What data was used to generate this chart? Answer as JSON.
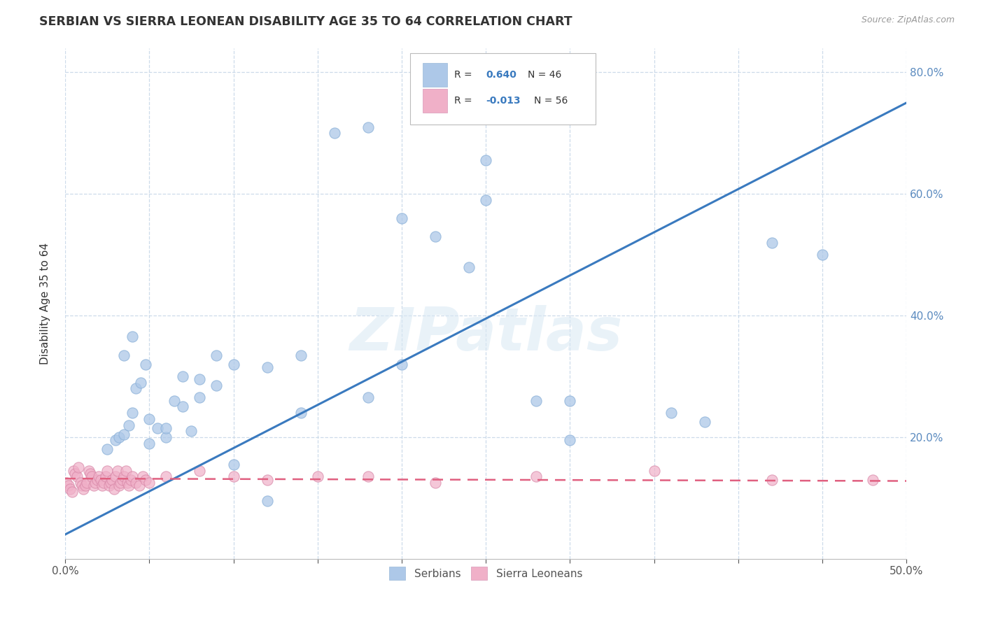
{
  "title": "SERBIAN VS SIERRA LEONEAN DISABILITY AGE 35 TO 64 CORRELATION CHART",
  "source_text": "Source: ZipAtlas.com",
  "ylabel": "Disability Age 35 to 64",
  "xlim": [
    0.0,
    0.5
  ],
  "ylim": [
    0.0,
    0.84
  ],
  "xticks": [
    0.0,
    0.05,
    0.1,
    0.15,
    0.2,
    0.25,
    0.3,
    0.35,
    0.4,
    0.45,
    0.5
  ],
  "xtick_labels": [
    "0.0%",
    "",
    "",
    "",
    "",
    "",
    "",
    "",
    "",
    "",
    "50.0%"
  ],
  "ytick_positions": [
    0.0,
    0.2,
    0.4,
    0.6,
    0.8
  ],
  "ytick_labels_right": [
    "",
    "20.0%",
    "40.0%",
    "60.0%",
    "80.0%"
  ],
  "serbian_color": "#adc8e8",
  "sierra_leonean_color": "#f0b0c8",
  "serbian_line_color": "#3a7abf",
  "sierra_leonean_line_color": "#e06080",
  "watermark": "ZIPatlas",
  "background_color": "#ffffff",
  "grid_color": "#c8d8e8",
  "tick_color": "#5a8abf",
  "serbian_trend": [
    0.0,
    0.5,
    0.04,
    0.75
  ],
  "sierra_trend": [
    0.0,
    0.5,
    0.132,
    0.128
  ],
  "serbian_x": [
    0.025,
    0.03,
    0.032,
    0.035,
    0.038,
    0.04,
    0.042,
    0.045,
    0.048,
    0.05,
    0.055,
    0.06,
    0.065,
    0.07,
    0.075,
    0.08,
    0.09,
    0.1,
    0.12,
    0.14,
    0.16,
    0.18,
    0.2,
    0.22,
    0.25,
    0.28,
    0.3,
    0.035,
    0.04,
    0.05,
    0.06,
    0.07,
    0.08,
    0.09,
    0.1,
    0.12,
    0.14,
    0.18,
    0.24,
    0.42,
    0.25,
    0.2,
    0.3,
    0.36,
    0.45,
    0.38
  ],
  "serbian_y": [
    0.18,
    0.195,
    0.2,
    0.205,
    0.22,
    0.24,
    0.28,
    0.29,
    0.32,
    0.19,
    0.215,
    0.2,
    0.26,
    0.3,
    0.21,
    0.265,
    0.285,
    0.32,
    0.315,
    0.335,
    0.7,
    0.71,
    0.56,
    0.53,
    0.59,
    0.26,
    0.26,
    0.335,
    0.365,
    0.23,
    0.215,
    0.25,
    0.295,
    0.335,
    0.155,
    0.095,
    0.24,
    0.265,
    0.48,
    0.52,
    0.655,
    0.32,
    0.195,
    0.24,
    0.5,
    0.225
  ],
  "sierra_x": [
    0.001,
    0.002,
    0.003,
    0.004,
    0.005,
    0.006,
    0.007,
    0.008,
    0.009,
    0.01,
    0.011,
    0.012,
    0.013,
    0.014,
    0.015,
    0.016,
    0.017,
    0.018,
    0.019,
    0.02,
    0.021,
    0.022,
    0.023,
    0.024,
    0.025,
    0.026,
    0.027,
    0.028,
    0.029,
    0.03,
    0.031,
    0.032,
    0.033,
    0.034,
    0.035,
    0.036,
    0.037,
    0.038,
    0.039,
    0.04,
    0.042,
    0.044,
    0.046,
    0.048,
    0.05,
    0.06,
    0.08,
    0.1,
    0.12,
    0.15,
    0.18,
    0.22,
    0.28,
    0.35,
    0.42,
    0.48
  ],
  "sierra_y": [
    0.125,
    0.12,
    0.115,
    0.11,
    0.145,
    0.14,
    0.135,
    0.15,
    0.125,
    0.12,
    0.115,
    0.12,
    0.125,
    0.145,
    0.14,
    0.135,
    0.12,
    0.125,
    0.13,
    0.135,
    0.13,
    0.12,
    0.125,
    0.135,
    0.145,
    0.12,
    0.125,
    0.13,
    0.115,
    0.135,
    0.145,
    0.12,
    0.125,
    0.13,
    0.135,
    0.145,
    0.125,
    0.12,
    0.13,
    0.135,
    0.125,
    0.12,
    0.135,
    0.13,
    0.125,
    0.135,
    0.145,
    0.135,
    0.13,
    0.135,
    0.135,
    0.125,
    0.135,
    0.145,
    0.13,
    0.13
  ]
}
